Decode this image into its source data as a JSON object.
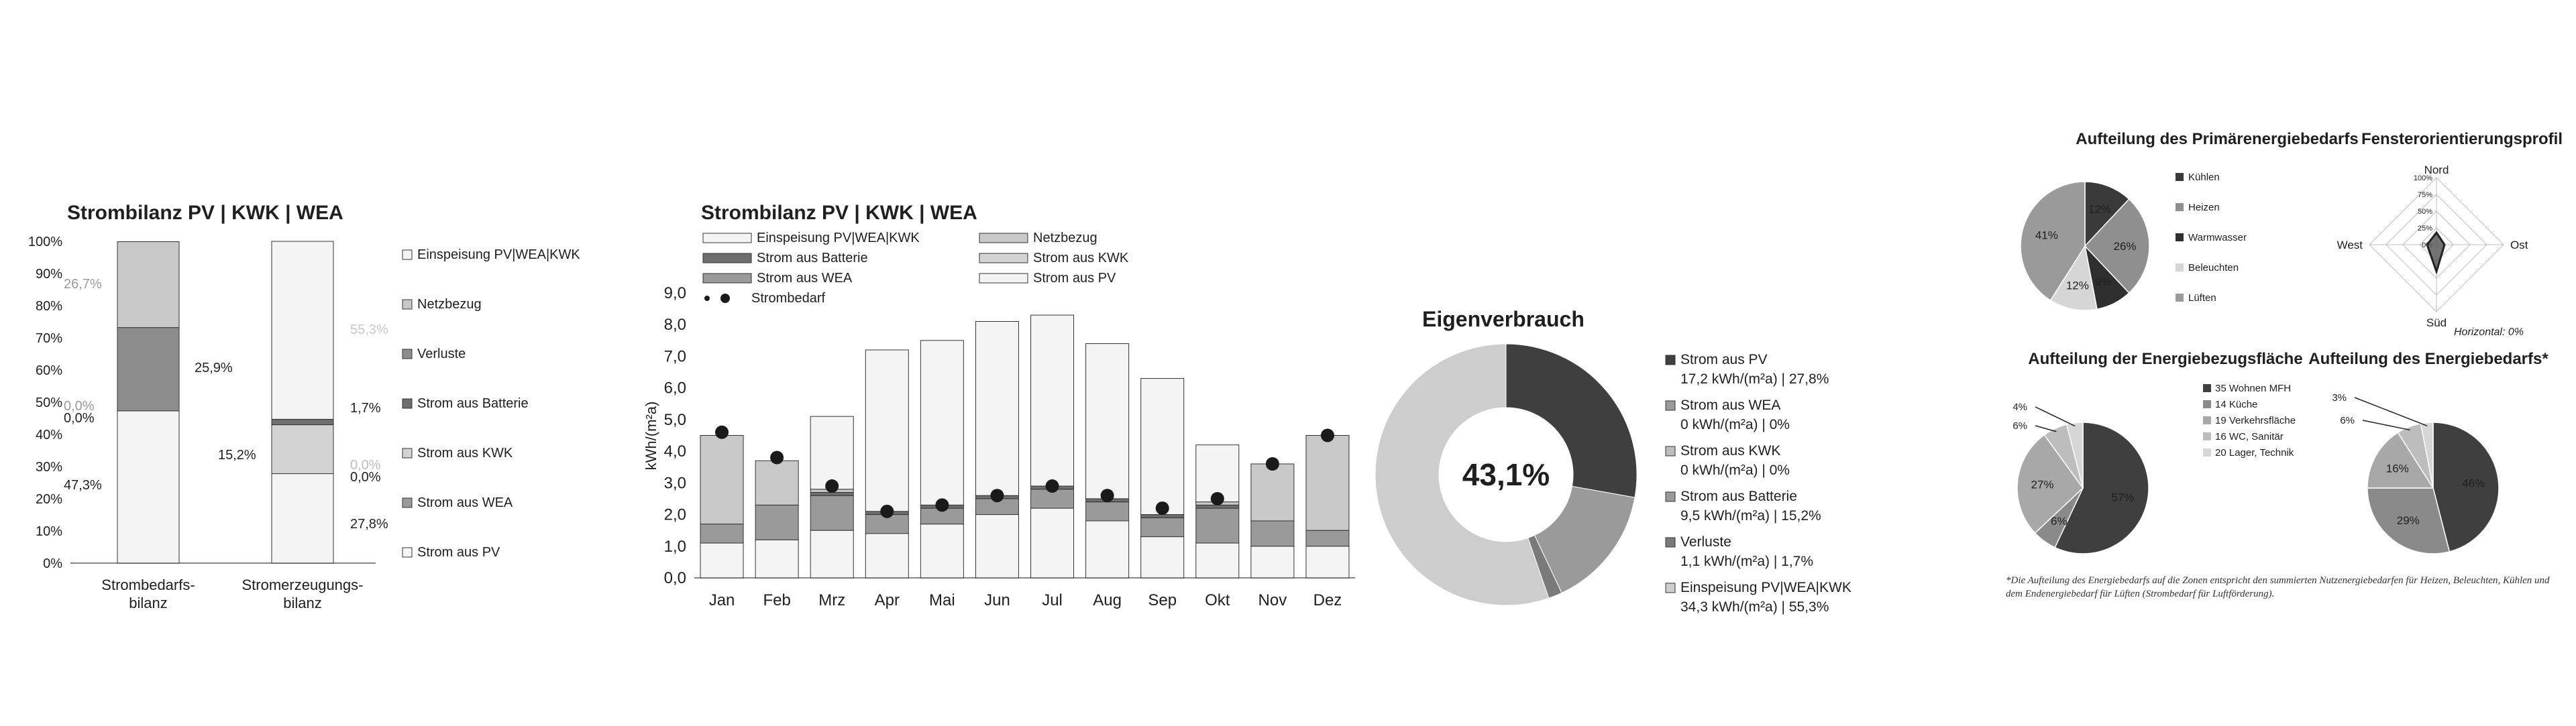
{
  "colors": {
    "pv": "#3f3f3f",
    "wea": "#9a9a9a",
    "kwk": "#d3d3d3",
    "batterie": "#6e6e6e",
    "verluste": "#8c8c8c",
    "netzbezug": "#c8c8c8",
    "einspeisung": "#f4f4f4",
    "marker": "#1a1a1a",
    "text": "#1f1f1f",
    "axis": "#888888"
  },
  "chart_data": [
    {
      "id": "strombilanz_stacked",
      "type": "bar",
      "title": "Strombilanz PV | KWK | WEA",
      "categories": [
        "Strombedarfs-\nbilanz",
        "Stromerzeugungs-\nbilanz"
      ],
      "ylim": [
        0,
        100
      ],
      "yticks": [
        "0%",
        "10%",
        "20%",
        "30%",
        "40%",
        "50%",
        "60%",
        "70%",
        "80%",
        "90%",
        "100%"
      ],
      "series": [
        {
          "name": "Strom aus PV",
          "values": [
            47.3,
            27.8
          ],
          "labels": [
            "47,3%",
            "27,8%"
          ]
        },
        {
          "name": "Strom aus WEA",
          "values": [
            0,
            0
          ],
          "labels": [
            "0,0%",
            "0,0%"
          ]
        },
        {
          "name": "Strom aus KWK",
          "values": [
            0,
            15.2
          ],
          "labels": [
            "0,0%",
            "15,2%"
          ]
        },
        {
          "name": "Strom aus Batterie",
          "values": [
            0,
            1.7
          ],
          "labels": [
            "",
            "1,7%"
          ]
        },
        {
          "name": "Verluste",
          "values": [
            25.9,
            0
          ],
          "labels": [
            "25,9%",
            ""
          ]
        },
        {
          "name": "Netzbezug",
          "values": [
            26.7,
            0
          ],
          "labels": [
            "26,7%",
            ""
          ]
        },
        {
          "name": "Einspeisung PV|WEA|KWK",
          "values": [
            0,
            55.3
          ],
          "labels": [
            "",
            "55,3%"
          ]
        }
      ],
      "legend": [
        "Einspeisung PV|WEA|KWK",
        "Netzbezug",
        "Verluste",
        "Strom aus Batterie",
        "Strom aus KWK",
        "Strom aus WEA",
        "Strom aus PV"
      ],
      "legend_position": "right"
    },
    {
      "id": "strombilanz_monthly",
      "type": "bar",
      "title": "Strombilanz PV | KWK | WEA",
      "ylabel": "kWh/(m²a)",
      "ylim": [
        0,
        9
      ],
      "yticks": [
        "0,0",
        "1,0",
        "2,0",
        "3,0",
        "4,0",
        "5,0",
        "6,0",
        "7,0",
        "8,0",
        "9,0"
      ],
      "categories": [
        "Jan",
        "Feb",
        "Mrz",
        "Apr",
        "Mai",
        "Jun",
        "Jul",
        "Aug",
        "Sep",
        "Okt",
        "Nov",
        "Dez"
      ],
      "series": [
        {
          "name": "Strom aus PV",
          "values": [
            1.1,
            1.2,
            1.5,
            1.4,
            1.7,
            2.0,
            2.2,
            1.8,
            1.3,
            1.1,
            1.0,
            1.0
          ]
        },
        {
          "name": "Strom aus WEA",
          "values": [
            0.6,
            1.1,
            1.1,
            0.6,
            0.5,
            0.5,
            0.6,
            0.6,
            0.6,
            1.1,
            0.8,
            0.5
          ]
        },
        {
          "name": "Strom aus KWK",
          "values": [
            0,
            0,
            0,
            0,
            0,
            0,
            0,
            0,
            0,
            0,
            0,
            0
          ]
        },
        {
          "name": "Strom aus Batterie",
          "values": [
            0,
            0,
            0.1,
            0.1,
            0.1,
            0.1,
            0.1,
            0.1,
            0.1,
            0.1,
            0,
            0
          ]
        },
        {
          "name": "Netzbezug",
          "values": [
            2.8,
            1.4,
            0.1,
            0,
            0,
            0,
            0,
            0,
            0,
            0.1,
            1.8,
            3.0
          ]
        },
        {
          "name": "Einspeisung PV|WEA|KWK",
          "values": [
            0,
            0,
            2.3,
            5.1,
            5.2,
            5.5,
            5.4,
            4.9,
            4.3,
            1.8,
            0,
            0
          ]
        }
      ],
      "bedarf": {
        "name": "Strombedarf",
        "values": [
          4.6,
          3.8,
          2.9,
          2.1,
          2.3,
          2.6,
          2.9,
          2.6,
          2.2,
          2.5,
          3.6,
          4.5
        ]
      },
      "legend": [
        [
          "Einspeisung PV|WEA|KWK",
          "Netzbezug"
        ],
        [
          "Strom aus Batterie",
          "Strom aus KWK"
        ],
        [
          "Strom aus WEA",
          "Strom aus PV"
        ],
        [
          "Strombedarf",
          ""
        ]
      ],
      "legend_position": "top"
    },
    {
      "id": "eigenverbrauch_donut",
      "type": "pie",
      "title": "Eigenverbrauch",
      "center_label": "43,1%",
      "slices": [
        {
          "name": "Strom aus PV",
          "value": 27.8,
          "line2": "17,2 kWh/(m²a) | 27,8%",
          "color": "#3f3f3f"
        },
        {
          "name": "Strom aus WEA",
          "value": 0,
          "line2": "0 kWh/(m²a) | 0%",
          "color": "#9a9a9a"
        },
        {
          "name": "Strom aus KWK",
          "value": 0,
          "line2": "0 kWh/(m²a) | 0%",
          "color": "#bdbdbd"
        },
        {
          "name": "Strom aus Batterie",
          "value": 15.2,
          "line2": "9,5 kWh/(m²a) | 15,2%",
          "color": "#9a9a9a"
        },
        {
          "name": "Verluste",
          "value": 1.7,
          "line2": "1,1 kWh/(m²a) | 1,7%",
          "color": "#7a7a7a"
        },
        {
          "name": "Einspeisung PV|WEA|KWK",
          "value": 55.3,
          "line2": "34,3 kWh/(m²a) | 55,3%",
          "color": "#cdcdcd"
        }
      ]
    },
    {
      "id": "primaerenergie_pie",
      "type": "pie",
      "title": "Aufteilung des Primärenergiebedarfs",
      "slices": [
        {
          "name": "Kühlen",
          "value": 12,
          "label": "12%",
          "color": "#3a3a3a"
        },
        {
          "name": "Heizen",
          "value": 26,
          "label": "26%",
          "color": "#8f8f8f"
        },
        {
          "name": "Warmwasser",
          "value": 9,
          "label": "9%",
          "color": "#2f2f2f"
        },
        {
          "name": "Beleuchten",
          "value": 12,
          "label": "12%",
          "color": "#d6d6d6"
        },
        {
          "name": "Lüften",
          "value": 41,
          "label": "41%",
          "color": "#9a9a9a"
        }
      ]
    },
    {
      "id": "fensterorientierung_radar",
      "type": "radar",
      "title": "Fensterorientierungsprofil",
      "axes": [
        "Nord",
        "Ost",
        "Süd",
        "West"
      ],
      "values": [
        18,
        12,
        40,
        14
      ],
      "rticks": [
        "0%",
        "25%",
        "50%",
        "75%",
        "100%"
      ],
      "ylim": [
        0,
        100
      ],
      "footnote": "Horizontal: 0%"
    },
    {
      "id": "energiebezugsflaeche_pie",
      "type": "pie",
      "title": "Aufteilung der Energiebezugsfläche",
      "slices": [
        {
          "name": "35 Wohnen MFH",
          "value": 57,
          "label": "57%",
          "color": "#3f3f3f"
        },
        {
          "name": "14 Küche",
          "value": 6,
          "label": "6%",
          "color": "#8a8a8a"
        },
        {
          "name": "19 Verkehrsfläche",
          "value": 27,
          "label": "27%",
          "color": "#a8a8a8"
        },
        {
          "name": "16 WC, Sanitär",
          "value": 6,
          "label": "6%",
          "color": "#bdbdbd"
        },
        {
          "name": "20 Lager, Technik",
          "value": 4,
          "label": "4%",
          "color": "#d6d6d6"
        }
      ]
    },
    {
      "id": "energiebedarf_pie",
      "type": "pie",
      "title": "Aufteilung des Energiebedarfs*",
      "slices": [
        {
          "name": "35 Wohnen MFH",
          "value": 46,
          "label": "46%",
          "color": "#3f3f3f"
        },
        {
          "name": "14 Küche",
          "value": 29,
          "label": "29%",
          "color": "#8a8a8a"
        },
        {
          "name": "19 Verkehrsfläche",
          "value": 16,
          "label": "16%",
          "color": "#a8a8a8"
        },
        {
          "name": "16 WC, Sanitär",
          "value": 6,
          "label": "6%",
          "color": "#bdbdbd"
        },
        {
          "name": "20 Lager, Technik",
          "value": 3,
          "label": "3%",
          "color": "#d6d6d6"
        }
      ]
    }
  ],
  "footnote": "*Die Aufteilung des Energiebedarfs auf die Zonen entspricht den summierten Nutzenergiebedarfen für Heizen, Beleuchten, Kühlen und dem Endenergiebedarf für Lüften (Strombedarf für Luftförderung)."
}
